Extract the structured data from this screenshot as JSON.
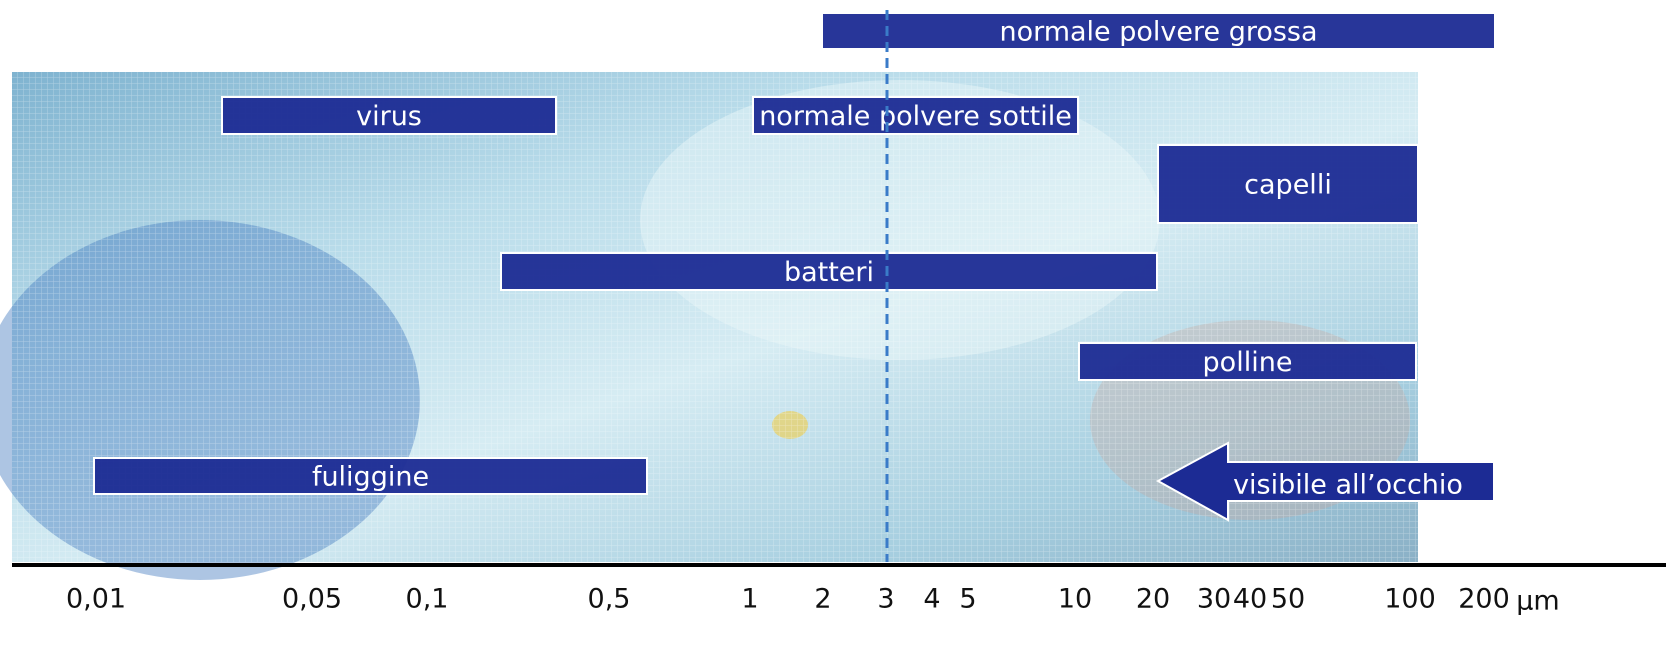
{
  "labels": [
    "normale polvere grossa",
    "virus",
    "normale polvere sottile",
    "capelli",
    "batteri",
    "polline",
    "fuliggine",
    "visibile all’occhio"
  ],
  "axis": {
    "ticks": [
      "0,01",
      "0,05",
      "0,1",
      "0,5",
      "1",
      "2",
      "3",
      "4",
      "5",
      "10",
      "20",
      "30",
      "40",
      "50",
      "100",
      "200"
    ],
    "unit": "μm"
  }
}
